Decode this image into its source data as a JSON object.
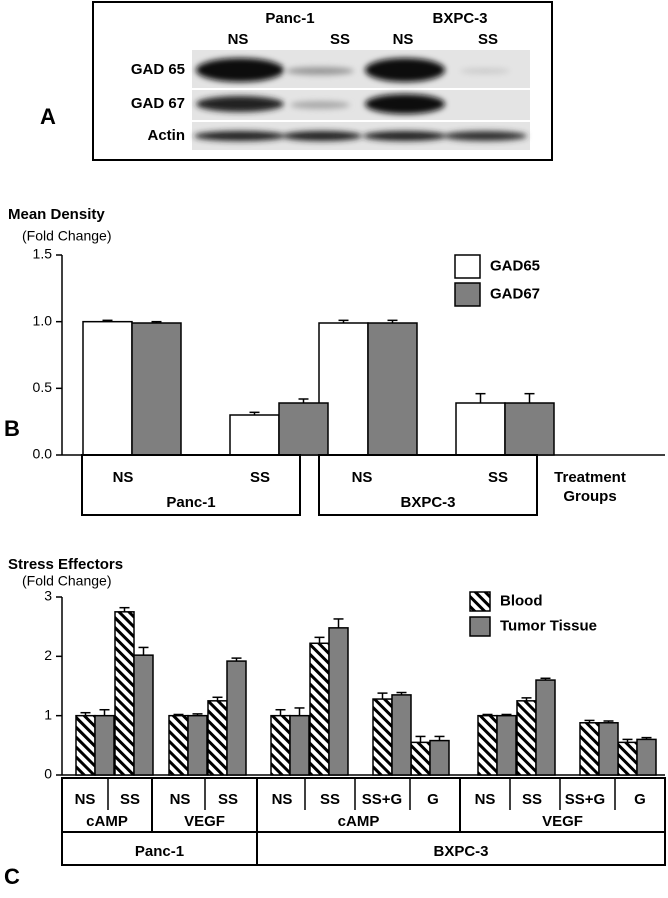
{
  "blot": {
    "cell_lines": [
      "Panc-1",
      "BXPC-3"
    ],
    "lanes": [
      "NS",
      "SS",
      "NS",
      "SS"
    ],
    "rows": [
      "GAD 65",
      "GAD 67",
      "Actin"
    ]
  },
  "panel_labels": [
    "A",
    "B",
    "C"
  ],
  "chart_data": [
    {
      "type": "bar",
      "title": "Mean Density",
      "subtitle": "(Fold Change)",
      "categories": [
        "NS",
        "SS",
        "NS",
        "SS"
      ],
      "groups": [
        "Panc-1",
        "BXPC-3"
      ],
      "xlabel": [
        "Treatment",
        "Groups"
      ],
      "series": [
        {
          "name": "GAD65",
          "color": "#ffffff",
          "values": [
            1.0,
            0.3,
            0.99,
            0.39
          ],
          "errors": [
            0.01,
            0.02,
            0.02,
            0.07
          ]
        },
        {
          "name": "GAD67",
          "color": "#7f7f7f",
          "values": [
            0.99,
            0.39,
            0.99,
            0.39
          ],
          "errors": [
            0.01,
            0.03,
            0.02,
            0.07
          ]
        }
      ],
      "ylim": [
        0,
        1.5
      ],
      "yticks": [
        {
          "value": 0,
          "label": "0.0"
        },
        0.5,
        {
          "value": 1,
          "label": "1.0"
        },
        1.5
      ],
      "legend": "upper right"
    },
    {
      "type": "bar",
      "title": "Stress Effectors",
      "subtitle": "(Fold Change)",
      "categories": [
        "NS",
        "SS",
        "NS",
        "SS",
        "NS",
        "SS",
        "SS+G",
        "G",
        "NS",
        "SS",
        "SS+G",
        "G"
      ],
      "subgroups": [
        "cAMP",
        "VEGF",
        "cAMP",
        "VEGF"
      ],
      "groups": [
        "Panc-1",
        "BXPC-3"
      ],
      "series": [
        {
          "name": "Blood",
          "color": "#000000",
          "hatch": true,
          "values": [
            1.0,
            2.75,
            1.0,
            1.25,
            1.0,
            2.22,
            1.28,
            0.55,
            1.0,
            1.25,
            0.88,
            0.55
          ],
          "errors": [
            0.05,
            0.07,
            0.02,
            0.06,
            0.1,
            0.1,
            0.1,
            0.1,
            0.02,
            0.05,
            0.04,
            0.05
          ]
        },
        {
          "name": "Tumor Tissue",
          "color": "#808080",
          "values": [
            1.0,
            2.02,
            1.0,
            1.92,
            1.0,
            2.48,
            1.35,
            0.58,
            1.0,
            1.6,
            0.88,
            0.6
          ],
          "errors": [
            0.1,
            0.13,
            0.03,
            0.05,
            0.13,
            0.15,
            0.04,
            0.07,
            0.02,
            0.03,
            0.03,
            0.03
          ]
        }
      ],
      "ylim": [
        0,
        3
      ],
      "yticks": [
        0,
        1,
        2,
        3
      ],
      "legend": "upper right"
    }
  ]
}
